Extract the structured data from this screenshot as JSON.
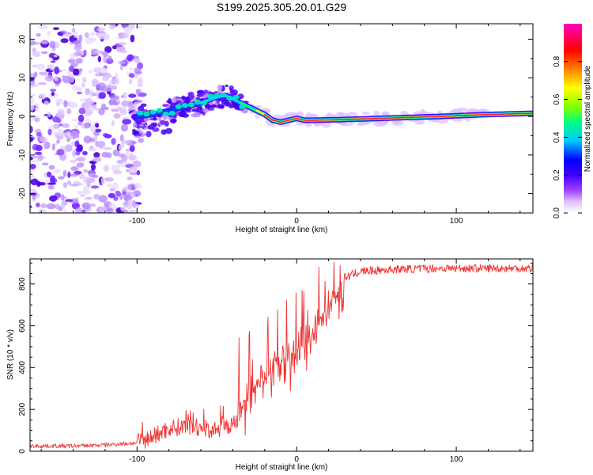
{
  "title": "S199.2025.305.20.01.G29",
  "chart_data": [
    {
      "type": "heatmap",
      "xlabel": "Height of straight line (km)",
      "ylabel": "Frequency (Hz)",
      "xlim": [
        -167,
        148
      ],
      "ylim": [
        -25,
        24
      ],
      "xticks": [
        -100,
        0,
        100
      ],
      "yticks": [
        -20,
        -10,
        0,
        10,
        20
      ],
      "colorbar": {
        "label": "Normalized spectral amplitude",
        "range": [
          0,
          1
        ],
        "ticks": [
          "0.0",
          "0.2",
          "0.4",
          "0.6",
          "0.8"
        ],
        "tick_values": [
          0.0,
          0.2,
          0.4,
          0.6,
          0.8
        ],
        "colors": [
          "#ffffff",
          "#c080ff",
          "#4000ff",
          "#0000ff",
          "#00c8ff",
          "#00ff80",
          "#80ff00",
          "#ffff00",
          "#ff8000",
          "#ff0000",
          "#ff00c0"
        ]
      },
      "ridge": [
        {
          "x": -100,
          "y": 0.0
        },
        {
          "x": -90,
          "y": 0.5
        },
        {
          "x": -80,
          "y": 1.5
        },
        {
          "x": -70,
          "y": 2.5
        },
        {
          "x": -60,
          "y": 3.5
        },
        {
          "x": -50,
          "y": 5.0
        },
        {
          "x": -45,
          "y": 5.5
        },
        {
          "x": -40,
          "y": 4.5
        },
        {
          "x": -35,
          "y": 3.5
        },
        {
          "x": -30,
          "y": 2.5
        },
        {
          "x": -25,
          "y": 1.5
        },
        {
          "x": -20,
          "y": 0.5
        },
        {
          "x": -15,
          "y": -1.0
        },
        {
          "x": -10,
          "y": -1.5
        },
        {
          "x": -5,
          "y": -1.0
        },
        {
          "x": 0,
          "y": -0.5
        },
        {
          "x": 5,
          "y": -1.0
        },
        {
          "x": 10,
          "y": -1.0
        },
        {
          "x": 30,
          "y": -0.8
        },
        {
          "x": 60,
          "y": -0.4
        },
        {
          "x": 90,
          "y": 0.0
        },
        {
          "x": 120,
          "y": 0.5
        },
        {
          "x": 148,
          "y": 0.8
        }
      ]
    },
    {
      "type": "line",
      "xlabel": "Height of straight line (km)",
      "ylabel": "SNR (10 * v/v)",
      "xlim": [
        -167,
        148
      ],
      "ylim": [
        0,
        920
      ],
      "xticks": [
        -100,
        0,
        100
      ],
      "yticks": [
        0,
        200,
        400,
        600,
        800
      ],
      "line_color": "#ee3333",
      "envelope": [
        {
          "x": -167,
          "y": 25
        },
        {
          "x": -140,
          "y": 25
        },
        {
          "x": -120,
          "y": 30
        },
        {
          "x": -100,
          "y": 40
        },
        {
          "x": -90,
          "y": 70
        },
        {
          "x": -80,
          "y": 110
        },
        {
          "x": -70,
          "y": 120
        },
        {
          "x": -60,
          "y": 110
        },
        {
          "x": -50,
          "y": 100
        },
        {
          "x": -40,
          "y": 130
        },
        {
          "x": -35,
          "y": 200
        },
        {
          "x": -30,
          "y": 280
        },
        {
          "x": -25,
          "y": 330
        },
        {
          "x": -20,
          "y": 360
        },
        {
          "x": -15,
          "y": 380
        },
        {
          "x": -10,
          "y": 420
        },
        {
          "x": 0,
          "y": 460
        },
        {
          "x": 10,
          "y": 560
        },
        {
          "x": 20,
          "y": 700
        },
        {
          "x": 30,
          "y": 830
        },
        {
          "x": 40,
          "y": 860
        },
        {
          "x": 60,
          "y": 870
        },
        {
          "x": 90,
          "y": 875
        },
        {
          "x": 120,
          "y": 875
        },
        {
          "x": 148,
          "y": 875
        }
      ]
    }
  ]
}
